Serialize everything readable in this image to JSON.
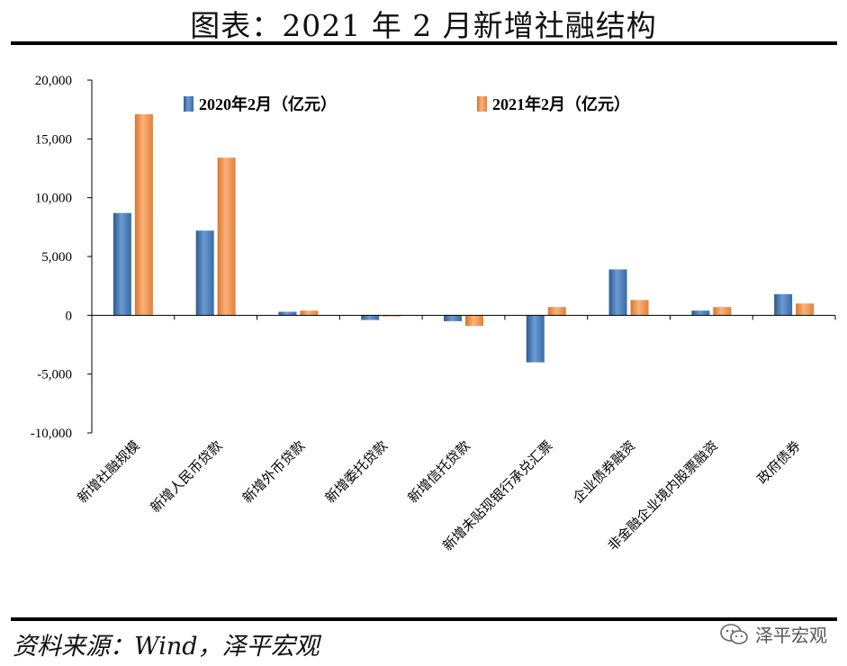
{
  "header": {
    "title": "图表：2021 年 2 月新增社融结构"
  },
  "footer": {
    "source": "资料来源：Wind，泽平宏观",
    "watermark": "泽平宏观"
  },
  "chart_data": {
    "type": "bar",
    "title": "图表：2021 年 2 月新增社融结构",
    "xlabel": "",
    "ylabel": "",
    "ylim": [
      -10000,
      20000
    ],
    "yticks": [
      -10000,
      -5000,
      0,
      5000,
      10000,
      15000,
      20000
    ],
    "ytick_labels": [
      "-10,000",
      "-5,000",
      "0",
      "5,000",
      "10,000",
      "15,000",
      "20,000"
    ],
    "grid": false,
    "legend_position": "top",
    "categories": [
      "新增社融规模",
      "新增人民币贷款",
      "新增外币贷款",
      "新增委托贷款",
      "新增信托贷款",
      "新增未贴现银行承兑汇票",
      "企业债券融资",
      "非金融企业境内股票融资",
      "政府债券"
    ],
    "series": [
      {
        "name": "2020年2月（亿元）",
        "color": "#4F81BD",
        "values": [
          8700,
          7200,
          300,
          -400,
          -500,
          -4000,
          3900,
          400,
          1800
        ]
      },
      {
        "name": "2021年2月（亿元）",
        "color": "#F79646",
        "values": [
          17100,
          13400,
          400,
          -100,
          -900,
          700,
          1300,
          700,
          1000
        ]
      }
    ]
  }
}
